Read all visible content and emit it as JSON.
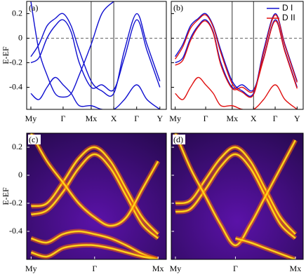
{
  "chart_data": [
    {
      "type": "bands",
      "panel_label": "(a)",
      "ylabel": "E-EF",
      "xlim": [
        -0.13,
        4.2
      ],
      "xticks": [
        {
          "value": 0,
          "label": "My"
        },
        {
          "value": 1,
          "label": "Γ"
        },
        {
          "value": 1.87,
          "label": "Mx"
        },
        {
          "value": 2.57,
          "label": "X"
        },
        {
          "value": 3.28,
          "label": "Γ"
        },
        {
          "value": 4.0,
          "label": "Y"
        }
      ],
      "tick_lines": [
        false,
        false,
        true,
        true,
        false,
        false
      ],
      "ylim": [
        -0.58,
        0.3
      ],
      "yticks": [
        -0.4,
        -0.2,
        0,
        0.2
      ],
      "show_ytick_labels": true,
      "hline": 0,
      "x": [
        0,
        0.25,
        0.5,
        0.75,
        1,
        1.25,
        1.5,
        1.87,
        2.2,
        2.57,
        2.9,
        3.28,
        3.6,
        4.0
      ],
      "series": [
        {
          "color": "#1010d0",
          "bands": [
            [
              -0.15,
              -0.05,
              0.1,
              0.16,
              0.2,
              0.1,
              -0.1,
              -0.35,
              -0.43,
              -0.45,
              -0.1,
              0.2,
              -0.05,
              -0.35
            ],
            [
              -0.2,
              -0.16,
              0.0,
              0.1,
              0.15,
              0.05,
              -0.2,
              -0.4,
              -0.38,
              -0.42,
              -0.16,
              0.15,
              -0.1,
              -0.4
            ],
            [
              -0.45,
              -0.5,
              -0.4,
              -0.32,
              -0.38,
              -0.45,
              -0.55,
              -0.55,
              -0.58,
              -0.58,
              -0.5,
              -0.38,
              -0.5,
              -0.58
            ],
            [
              0.3,
              -0.1,
              -0.3,
              -0.45,
              -0.48,
              -0.45,
              -0.3,
              -0.05,
              0.2,
              0.3,
              null,
              null,
              null,
              null
            ]
          ]
        }
      ]
    },
    {
      "type": "bands",
      "panel_label": "(b)",
      "xlim": [
        -0.13,
        4.2
      ],
      "xticks": [
        {
          "value": 0,
          "label": "My"
        },
        {
          "value": 1,
          "label": "Γ"
        },
        {
          "value": 1.87,
          "label": "Mx"
        },
        {
          "value": 2.57,
          "label": "X"
        },
        {
          "value": 3.28,
          "label": "Γ"
        },
        {
          "value": 4.0,
          "label": "Y"
        }
      ],
      "tick_lines": [
        false,
        false,
        true,
        true,
        false,
        false
      ],
      "ylim": [
        -0.58,
        0.3
      ],
      "yticks": [
        -0.4,
        -0.2,
        0,
        0.2
      ],
      "show_ytick_labels": false,
      "hline": 0,
      "legend": "upper right",
      "x": [
        0,
        0.25,
        0.5,
        0.75,
        1,
        1.25,
        1.5,
        1.87,
        2.2,
        2.57,
        2.9,
        3.28,
        3.6,
        4.0
      ],
      "series": [
        {
          "name": "D I",
          "color": "#1010d0",
          "bands": [
            [
              -0.15,
              -0.05,
              0.1,
              0.16,
              0.2,
              0.1,
              -0.1,
              -0.35,
              -0.43,
              -0.45,
              -0.1,
              0.2,
              -0.05,
              -0.35
            ],
            [
              -0.2,
              -0.16,
              0.0,
              0.1,
              0.15,
              0.05,
              -0.2,
              -0.4,
              -0.38,
              -0.42,
              -0.16,
              0.15,
              -0.1,
              -0.4
            ]
          ]
        },
        {
          "name": "D II",
          "color": "#e01010",
          "bands": [
            [
              -0.17,
              -0.07,
              0.08,
              0.15,
              0.19,
              0.09,
              -0.12,
              -0.37,
              -0.44,
              -0.46,
              -0.12,
              0.19,
              -0.06,
              -0.36
            ],
            [
              -0.22,
              -0.18,
              -0.02,
              0.09,
              0.14,
              0.04,
              -0.22,
              -0.41,
              -0.4,
              -0.43,
              -0.17,
              0.14,
              -0.11,
              -0.41
            ],
            [
              -0.45,
              -0.5,
              -0.4,
              -0.32,
              -0.38,
              -0.45,
              -0.55,
              -0.55,
              -0.58,
              -0.58,
              -0.5,
              -0.38,
              -0.5,
              -0.58
            ]
          ]
        }
      ]
    },
    {
      "type": "spectral",
      "panel_label": "(c)",
      "ylabel": "E-EF",
      "background": "#5a12a8",
      "xlim": [
        -0.07,
        2.13
      ],
      "xticks": [
        {
          "value": 0,
          "label": "My"
        },
        {
          "value": 1,
          "label": "Γ"
        },
        {
          "value": 2,
          "label": "Mx"
        }
      ],
      "ylim": [
        -0.6,
        0.3
      ],
      "yticks": [
        -0.4,
        -0.2,
        0,
        0.2
      ],
      "show_ytick_labels": true,
      "x": [
        0,
        0.25,
        0.5,
        0.75,
        1,
        1.25,
        1.5,
        1.75,
        2
      ],
      "series": [
        {
          "color": "#ffd21a",
          "bands": [
            [
              -0.22,
              -0.2,
              -0.05,
              0.12,
              0.2,
              0.1,
              -0.1,
              -0.3,
              -0.42
            ],
            [
              -0.28,
              -0.25,
              -0.12,
              0.05,
              0.15,
              0.05,
              -0.15,
              -0.35,
              -0.45
            ],
            [
              -0.45,
              -0.48,
              -0.42,
              -0.4,
              -0.42,
              -0.45,
              -0.5,
              -0.56,
              -0.6
            ],
            [
              -0.55,
              -0.58,
              -0.52,
              -0.5,
              -0.5,
              -0.52,
              -0.55,
              -0.58,
              -0.6
            ],
            [
              0.3,
              0.1,
              -0.05,
              -0.2,
              -0.3,
              -0.36,
              -0.3,
              -0.1,
              0.1
            ]
          ]
        }
      ]
    },
    {
      "type": "spectral",
      "panel_label": "(d)",
      "background": "#5a12a8",
      "xlim": [
        -0.07,
        2.13
      ],
      "xticks": [
        {
          "value": 0,
          "label": "My"
        },
        {
          "value": 1,
          "label": "Γ"
        },
        {
          "value": 2,
          "label": "Mx"
        }
      ],
      "ylim": [
        -0.6,
        0.3
      ],
      "yticks": [
        -0.4,
        -0.2,
        0,
        0.2
      ],
      "show_ytick_labels": false,
      "x": [
        0,
        0.25,
        0.5,
        0.75,
        1,
        1.25,
        1.5,
        1.75,
        2
      ],
      "series": [
        {
          "color": "#ffd21a",
          "bands": [
            [
              -0.2,
              -0.18,
              -0.03,
              0.12,
              0.2,
              0.1,
              -0.1,
              -0.3,
              -0.42
            ],
            [
              -0.26,
              -0.24,
              -0.1,
              0.06,
              0.15,
              0.05,
              -0.15,
              -0.35,
              -0.45
            ],
            [
              0.3,
              0.05,
              -0.15,
              -0.35,
              -0.5,
              -0.35,
              -0.15,
              0.05,
              0.25
            ],
            [
              null,
              null,
              null,
              null,
              -0.45,
              -0.48,
              -0.52,
              -0.56,
              -0.6
            ]
          ]
        }
      ]
    }
  ]
}
